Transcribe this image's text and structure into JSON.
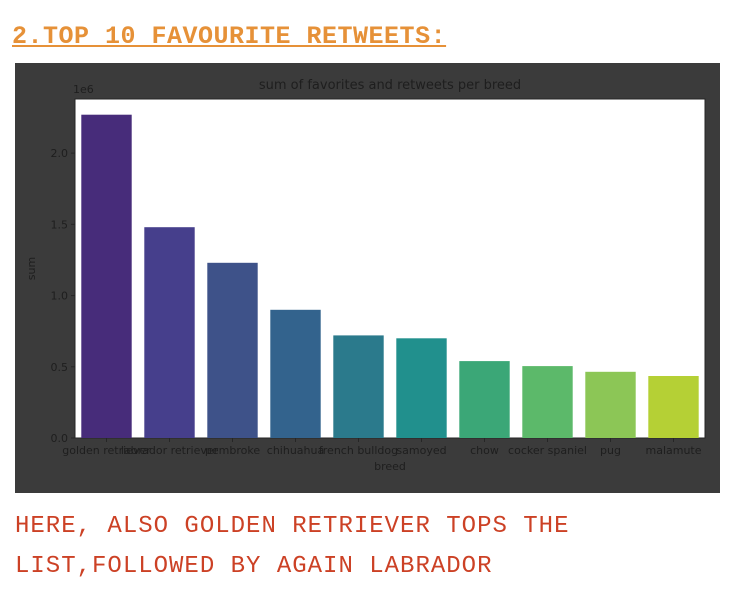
{
  "heading": "2.TOP 10 FAVOURITE RETWEETS:",
  "caption": {
    "line1": "HERE, ALSO GOLDEN RETRIEVER TOPS THE",
    "line2": "LIST,FOLLOWED BY AGAIN LABRADOR"
  },
  "colors": {
    "heading": "#e69138",
    "caption": "#cc4125",
    "frame": "#3b3b3b",
    "text": "#1e1e1e"
  },
  "chart_data": {
    "type": "bar",
    "title": "sum of favorites and retweets per breed",
    "xlabel": "breed",
    "ylabel": "sum",
    "offset_label": "1e6",
    "categories": [
      "golden retriever",
      "labrador retriever",
      "pembroke",
      "chihuahua",
      "french bulldog",
      "samoyed",
      "chow",
      "cocker spaniel",
      "pug",
      "malamute"
    ],
    "values": [
      2270000,
      1480000,
      1230000,
      900000,
      720000,
      700000,
      540000,
      505000,
      465000,
      435000
    ],
    "colors": [
      "#472c7a",
      "#463f8c",
      "#3e5289",
      "#33638d",
      "#2b7a8c",
      "#21908d",
      "#3ba777",
      "#5cb96a",
      "#8cc656",
      "#b5d035"
    ],
    "yticks": [
      0.0,
      0.5,
      1.0,
      1.5,
      2.0
    ],
    "ytick_labels": [
      "0.0",
      "0.5",
      "1.0",
      "1.5",
      "2.0"
    ],
    "ylim": [
      0,
      2380000
    ],
    "grid": false
  }
}
